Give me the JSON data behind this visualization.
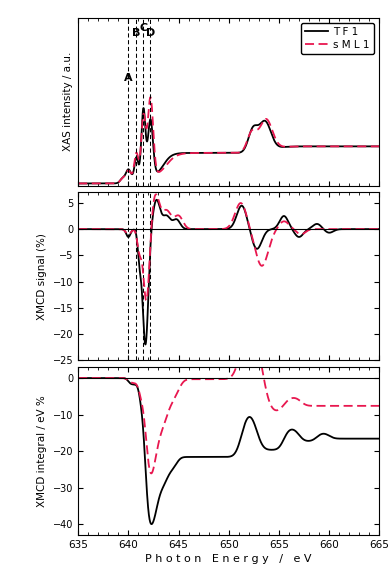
{
  "xmin": 635,
  "xmax": 665,
  "xticks": [
    635,
    640,
    645,
    650,
    655,
    660,
    665
  ],
  "vlines": [
    640.0,
    640.8,
    641.5,
    642.2
  ],
  "vline_labels": [
    "A",
    "B",
    "C",
    "D"
  ],
  "tf1_color": "#000000",
  "sml1_color": "#e8174f",
  "tf1_label": "T F 1",
  "sml1_label": "s M L 1",
  "panel1_ylabel": "XAS intensity / a.u.",
  "panel2_ylabel": "XMCD signal (%)",
  "panel3_ylabel": "XMCD integral / eV %",
  "xlabel": "P h o t o n   E n e r g y   /   e V",
  "panel2_yticks": [
    5,
    0,
    -5,
    -10,
    -15,
    -20,
    -25
  ],
  "panel3_yticks": [
    0,
    -10,
    -20,
    -30,
    -40
  ],
  "panel2_ylim": [
    -25,
    7
  ],
  "panel3_ylim": [
    -43,
    3
  ],
  "panel1_ylim": [
    0.08,
    1.62
  ]
}
